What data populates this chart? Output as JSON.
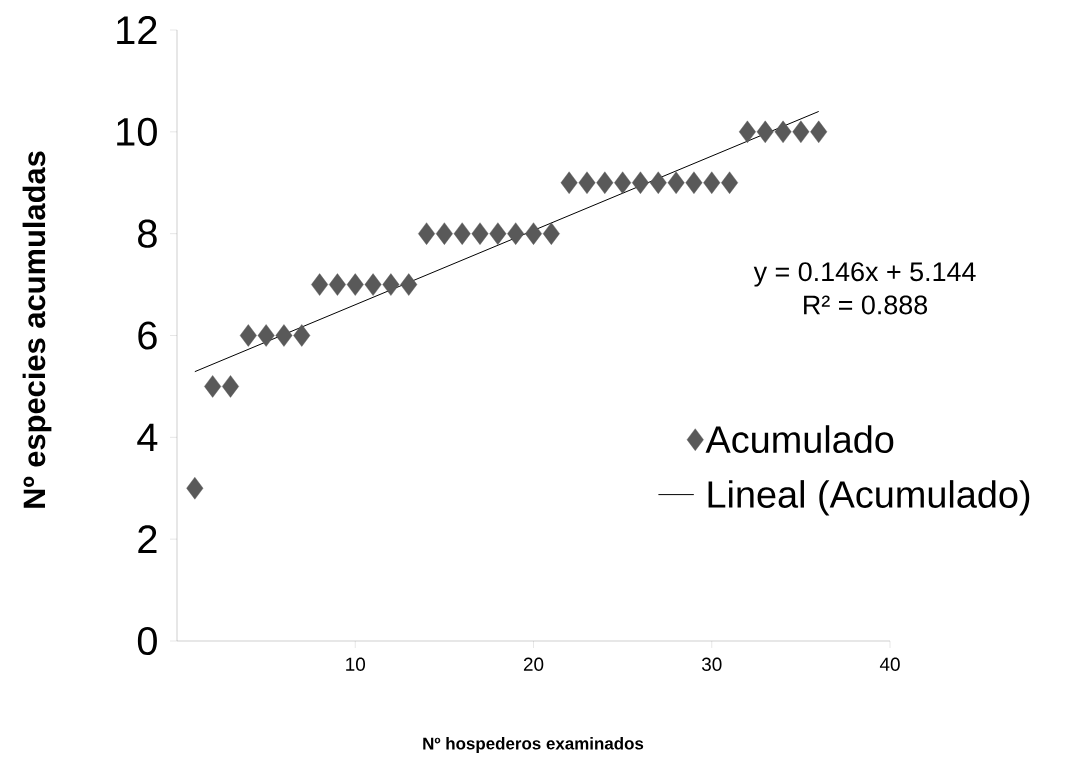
{
  "chart_data": {
    "type": "scatter",
    "xlabel": "Nº hospederos examinados",
    "ylabel": "Nº especies acumuladas",
    "x": [
      1,
      2,
      3,
      4,
      5,
      6,
      7,
      8,
      9,
      10,
      11,
      12,
      13,
      14,
      15,
      16,
      17,
      18,
      19,
      20,
      21,
      22,
      23,
      24,
      25,
      26,
      27,
      28,
      29,
      30,
      31,
      32,
      33,
      34,
      35,
      36
    ],
    "xlim": [
      0,
      40
    ],
    "xticks": [
      10,
      20,
      30,
      40
    ],
    "ylim": [
      0,
      12
    ],
    "yticks": [
      0,
      2,
      4,
      6,
      8,
      10,
      12
    ],
    "marker": "diamond",
    "legend": "right",
    "annotations": [
      "y = 0.146x + 5.144",
      "R² = 0.888"
    ],
    "series": [
      {
        "name": "Acumulado",
        "color": "#595959",
        "values": [
          3,
          5,
          5,
          6,
          6,
          6,
          6,
          7,
          7,
          7,
          7,
          7,
          7,
          8,
          8,
          8,
          8,
          8,
          8,
          8,
          8,
          9,
          9,
          9,
          9,
          9,
          9,
          9,
          9,
          9,
          9,
          10,
          10,
          10,
          10,
          10
        ]
      },
      {
        "name": "Lineal (Acumulado)",
        "type": "line",
        "marker": "none",
        "color": "#000000",
        "x": [
          1,
          36
        ],
        "values": [
          5.29,
          10.4
        ]
      }
    ]
  }
}
